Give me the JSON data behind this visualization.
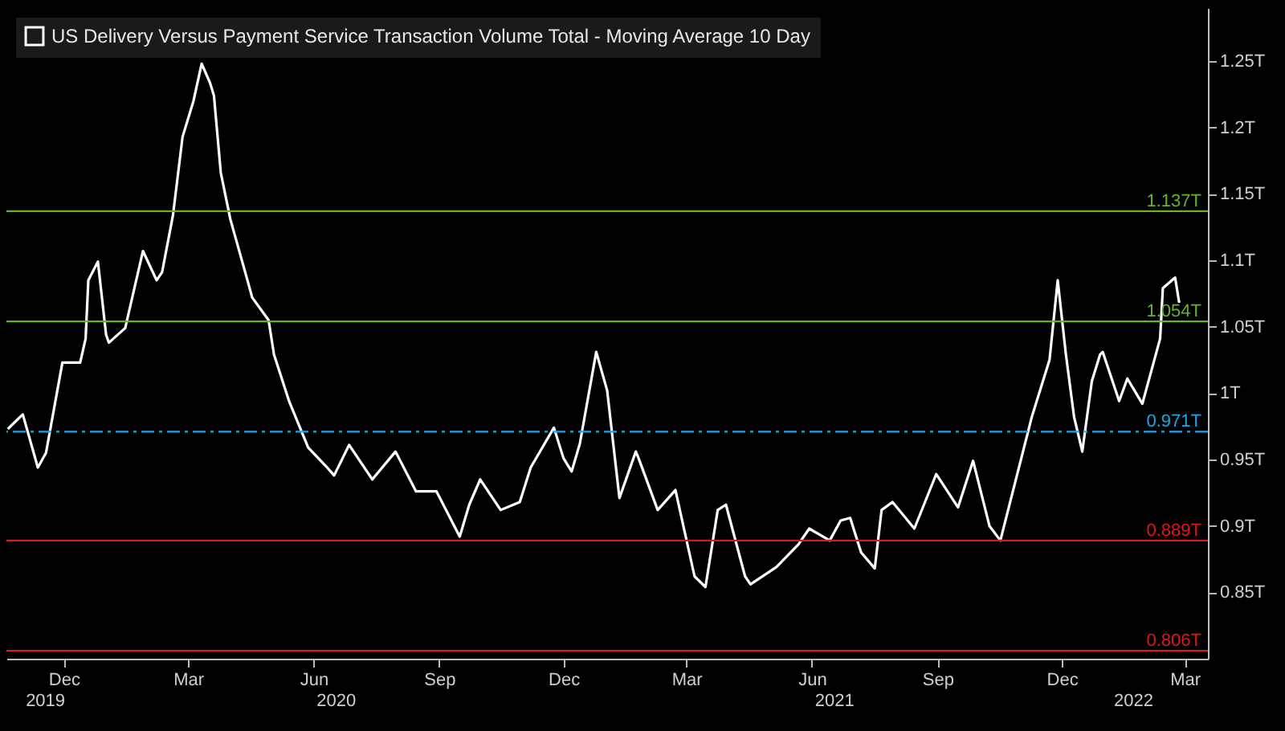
{
  "chart_data": {
    "type": "line",
    "x": [
      "2019-11-04",
      "2019-11-15",
      "2019-11-26",
      "2019-12-02",
      "2019-12-14",
      "2019-12-27",
      "2019-12-31",
      "2020-01-02",
      "2020-01-09",
      "2020-01-15",
      "2020-01-17",
      "2020-01-29",
      "2020-02-11",
      "2020-02-21",
      "2020-02-25",
      "2020-03-04",
      "2020-03-11",
      "2020-03-19",
      "2020-03-25",
      "2020-03-31",
      "2020-04-03",
      "2020-04-08",
      "2020-04-15",
      "2020-04-27",
      "2020-05-01",
      "2020-05-13",
      "2020-05-17",
      "2020-05-28",
      "2020-06-11",
      "2020-06-24",
      "2020-06-30",
      "2020-07-11",
      "2020-07-28",
      "2020-08-14",
      "2020-08-29",
      "2020-09-13",
      "2020-09-30",
      "2020-10-07",
      "2020-10-15",
      "2020-10-30",
      "2020-11-13",
      "2020-11-21",
      "2020-12-08",
      "2020-12-15",
      "2020-12-21",
      "2020-12-27",
      "2021-01-08",
      "2021-01-16",
      "2021-01-25",
      "2021-02-06",
      "2021-02-08",
      "2021-02-22",
      "2021-03-07",
      "2021-03-21",
      "2021-03-29",
      "2021-04-07",
      "2021-04-13",
      "2021-04-27",
      "2021-05-01",
      "2021-05-20",
      "2021-06-05",
      "2021-06-13",
      "2021-06-28",
      "2021-07-06",
      "2021-07-13",
      "2021-07-21",
      "2021-07-31",
      "2021-08-05",
      "2021-08-13",
      "2021-08-29",
      "2021-09-14",
      "2021-09-30",
      "2021-10-11",
      "2021-10-23",
      "2021-10-31",
      "2021-11-23",
      "2021-12-06",
      "2021-12-12",
      "2021-12-18",
      "2021-12-24",
      "2021-12-30",
      "2022-01-06",
      "2022-01-12",
      "2022-01-14",
      "2022-01-26",
      "2022-02-01",
      "2022-02-12",
      "2022-02-25",
      "2022-02-27",
      "2022-03-08",
      "2022-03-11"
    ],
    "series": [
      {
        "name": "US Delivery Versus Payment Service Transaction Volume Total - Moving Average 10 Day",
        "color": "#ffffff",
        "values": [
          0.973,
          0.984,
          0.944,
          0.955,
          1.023,
          1.023,
          1.041,
          1.085,
          1.099,
          1.044,
          1.038,
          1.049,
          1.107,
          1.085,
          1.091,
          1.134,
          1.193,
          1.22,
          1.248,
          1.234,
          1.224,
          1.166,
          1.131,
          1.087,
          1.072,
          1.055,
          1.029,
          0.994,
          0.959,
          0.945,
          0.938,
          0.961,
          0.935,
          0.956,
          0.926,
          0.926,
          0.892,
          0.916,
          0.935,
          0.912,
          0.918,
          0.944,
          0.974,
          0.951,
          0.941,
          0.962,
          1.031,
          1.002,
          0.921,
          0.956,
          0.951,
          0.912,
          0.927,
          0.862,
          0.854,
          0.912,
          0.916,
          0.862,
          0.856,
          0.869,
          0.886,
          0.898,
          0.889,
          0.904,
          0.906,
          0.88,
          0.868,
          0.912,
          0.918,
          0.898,
          0.939,
          0.914,
          0.949,
          0.9,
          0.889,
          0.982,
          1.025,
          1.085,
          1.029,
          0.982,
          0.956,
          1.009,
          1.029,
          1.031,
          0.994,
          1.011,
          0.992,
          1.041,
          1.079,
          1.087,
          1.068
        ]
      }
    ],
    "xlim": [
      "2019-11-03",
      "2022-04-01"
    ],
    "xticks": [
      {
        "value": "2019-12-15",
        "label": "Dec"
      },
      {
        "value": "2020-03-15",
        "label": "Mar"
      },
      {
        "value": "2020-06-15",
        "label": "Jun"
      },
      {
        "value": "2020-09-15",
        "label": "Sep"
      },
      {
        "value": "2020-12-15",
        "label": "Dec"
      },
      {
        "value": "2021-03-15",
        "label": "Mar"
      },
      {
        "value": "2021-06-15",
        "label": "Jun"
      },
      {
        "value": "2021-09-15",
        "label": "Sep"
      },
      {
        "value": "2021-12-15",
        "label": "Dec"
      },
      {
        "value": "2022-03-15",
        "label": "Mar"
      }
    ],
    "x2lim": [
      "2019-11-03",
      "2022-04-01"
    ],
    "x2ticks": [
      {
        "value": "2019-12-01",
        "label": "2019"
      },
      {
        "value": "2020-07-01",
        "label": "2020"
      },
      {
        "value": "2021-07-01",
        "label": "2021"
      },
      {
        "value": "2022-02-05",
        "label": "2022"
      }
    ],
    "ylim": [
      0.8,
      1.29
    ],
    "yticks": [
      {
        "value": 0.85,
        "label": "0.85T"
      },
      {
        "value": 0.9,
        "label": "0.9T"
      },
      {
        "value": 0.95,
        "label": "0.95T"
      },
      {
        "value": 1,
        "label": "1T"
      },
      {
        "value": 1.05,
        "label": "1.05T"
      },
      {
        "value": 1.1,
        "label": "1.1T"
      },
      {
        "value": 1.15,
        "label": "1.15T"
      },
      {
        "value": 1.2,
        "label": "1.2T"
      },
      {
        "value": 1.25,
        "label": "1.25T"
      }
    ],
    "ref_lines": [
      {
        "axis": "y",
        "value": 1.137,
        "label": "1.137T",
        "color": "#66b32e",
        "line_style": "solid"
      },
      {
        "axis": "y",
        "value": 1.054,
        "label": "1.054T",
        "color": "#66b32e",
        "line_style": "solid"
      },
      {
        "axis": "y",
        "value": 0.971,
        "label": "0.971T",
        "color": "#1aa7e8",
        "line_style": "dashed"
      },
      {
        "axis": "y",
        "value": 0.889,
        "label": "0.889T",
        "color": "#e0161b",
        "line_style": "solid"
      },
      {
        "axis": "y",
        "value": 0.806,
        "label": "0.806T",
        "color": "#e0161b",
        "line_style": "solid"
      }
    ],
    "legend": "top left",
    "grid": false,
    "marker": "none",
    "line_style": "solid"
  }
}
